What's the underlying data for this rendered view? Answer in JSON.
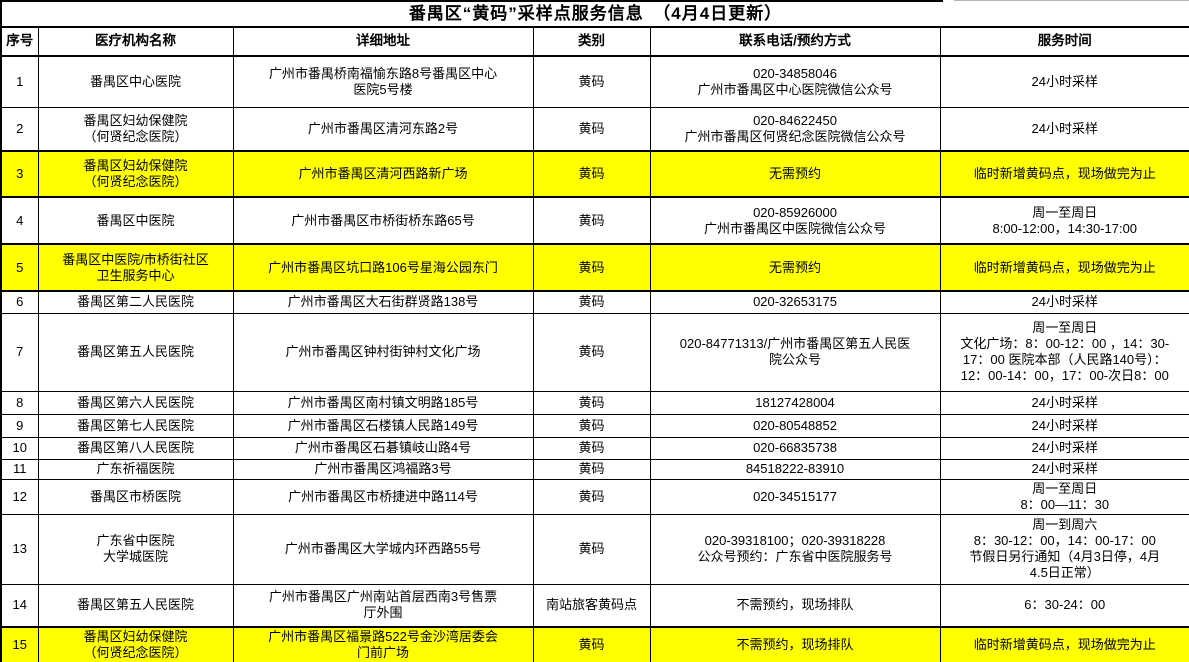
{
  "title": "番禺区“黄码”采样点服务信息　（4月4日更新）",
  "colors": {
    "highlight": "#FFFF00",
    "border": "#000000",
    "text": "#000000",
    "background": "#FFFFFF"
  },
  "columns": [
    {
      "label": "序号"
    },
    {
      "label": "医疗机构名称"
    },
    {
      "label": "详细地址"
    },
    {
      "label": "类别"
    },
    {
      "label": "联系电话/预约方式"
    },
    {
      "label": "服务时间"
    }
  ],
  "rows": [
    {
      "no": "1",
      "name": "番禺区中心医院",
      "address": "广州市番禺桥南福愉东路8号番禺区中心\n医院5号楼",
      "category": "黄码",
      "contact": "020-34858046\n广州市番禺区中心医院微信公众号",
      "hours": "24小时采样",
      "highlight": false
    },
    {
      "no": "2",
      "name": "番禺区妇幼保健院\n（何贤纪念医院）",
      "address": "广州市番禺区清河东路2号",
      "category": "黄码",
      "contact": "020-84622450\n广州市番禺区何贤纪念医院微信公众号",
      "hours": "24小时采样",
      "highlight": false
    },
    {
      "no": "3",
      "name": "番禺区妇幼保健院\n（何贤纪念医院）",
      "address": "广州市番禺区清河西路新广场",
      "category": "黄码",
      "contact": "无需预约",
      "hours": "临时新增黄码点，现场做完为止",
      "highlight": true
    },
    {
      "no": "4",
      "name": "番禺区中医院",
      "address": "广州市番禺区市桥街桥东路65号",
      "category": "黄码",
      "contact": "020-85926000\n广州市番禺区中医院微信公众号",
      "hours": "周一至周日\n8:00-12:00，14:30-17:00",
      "highlight": false
    },
    {
      "no": "5",
      "name": "番禺区中医院/市桥街社区\n卫生服务中心",
      "address": "广州市番禺区坑口路106号星海公园东门",
      "category": "黄码",
      "contact": "无需预约",
      "hours": "临时新增黄码点，现场做完为止",
      "highlight": true
    },
    {
      "no": "6",
      "name": "番禺区第二人民医院",
      "address": "广州市番禺区大石街群贤路138号",
      "category": "黄码",
      "contact": "020-32653175",
      "hours": "24小时采样",
      "highlight": false
    },
    {
      "no": "7",
      "name": "番禺区第五人民医院",
      "address": "广州市番禺区钟村街钟村文化广场",
      "category": "黄码",
      "contact": "020-84771313/广州市番禺区第五人民医\n院公众号",
      "hours": "周一至周日\n文化广场：8：00-12：00 ，14：30-\n17：00  医院本部（人民路140号）：\n12：00-14：00，17：00-次日8：00",
      "highlight": false
    },
    {
      "no": "8",
      "name": "番禺区第六人民医院",
      "address": "广州市番禺区南村镇文明路185号",
      "category": "黄码",
      "contact": "18127428004",
      "hours": "24小时采样",
      "highlight": false
    },
    {
      "no": "9",
      "name": "番禺区第七人民医院",
      "address": "广州市番禺区石楼镇人民路149号",
      "category": "黄码",
      "contact": "020-80548852",
      "hours": "24小时采样",
      "highlight": false
    },
    {
      "no": "10",
      "name": "番禺区第八人民医院",
      "address": "广州市番禺区石碁镇岐山路4号",
      "category": "黄码",
      "contact": "020-66835738",
      "hours": "24小时采样",
      "highlight": false
    },
    {
      "no": "11",
      "name": "广东祈福医院",
      "address": "广州市番禺区鸿福路3号",
      "category": "黄码",
      "contact": "84518222-83910",
      "hours": "24小时采样",
      "highlight": false
    },
    {
      "no": "12",
      "name": "番禺区市桥医院",
      "address": "广州市番禺区市桥捷进中路114号",
      "category": "黄码",
      "contact": "020-34515177",
      "hours": "周一至周日\n8：00—11：30",
      "highlight": false
    },
    {
      "no": "13",
      "name": "广东省中医院\n大学城医院",
      "address": "广州市番禺区大学城内环西路55号",
      "category": "黄码",
      "contact": "020-39318100；020-39318228\n公众号预约：广东省中医院服务号",
      "hours": "周一到周六\n8：30-12：00，14：00-17：00\n节假日另行通知（4月3日停，4月\n4.5日正常）",
      "highlight": false
    },
    {
      "no": "14",
      "name": "番禺区第五人民医院",
      "address": "广州市番禺区广州南站首层西南3号售票\n厅外围",
      "category": "南站旅客黄码点",
      "contact": "不需预约，现场排队",
      "hours": "6：30-24：00",
      "highlight": false
    },
    {
      "no": "15",
      "name": "番禺区妇幼保健院\n（何贤纪念医院）",
      "address": "广州市番禺区福景路522号金沙湾居委会\n门前广场",
      "category": "黄码",
      "contact": "不需预约，现场排队",
      "hours": "临时新增黄码点，现场做完为止",
      "highlight": true
    }
  ]
}
